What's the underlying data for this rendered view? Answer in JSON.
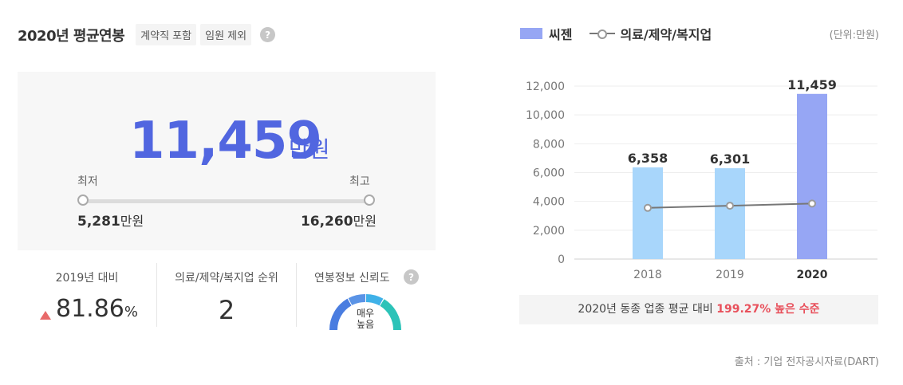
{
  "header": {
    "title": "2020년 평균연봉",
    "tag_contract": "계약직 포함",
    "tag_exec": "임원 제외",
    "help_glyph": "?"
  },
  "salary": {
    "value": "11,459",
    "unit": "만원",
    "min_label": "최저",
    "max_label": "최고",
    "min_value": "5,281",
    "max_value": "16,260",
    "value_unit": "만원"
  },
  "stats": {
    "yoy_label": "2019년 대비",
    "yoy_value": "81.86",
    "yoy_pct": "%",
    "rank_label": "의료/제약/복지업 순위",
    "rank_value": "2",
    "reliability_label": "연봉정보 신뢰도",
    "reliability_value_line1": "매우",
    "reliability_value_line2": "높음"
  },
  "legend": {
    "company": "씨젠",
    "industry": "의료/제약/복지업",
    "unit": "(단위:만원)"
  },
  "chart_data": {
    "type": "bar",
    "categories": [
      "2018",
      "2019",
      "2020"
    ],
    "series": [
      {
        "name": "씨젠",
        "values": [
          6358,
          6301,
          11459
        ]
      },
      {
        "name": "의료/제약/복지업",
        "values": [
          3550,
          3700,
          3850
        ]
      }
    ],
    "bar_labels": [
      "6,358",
      "6,301",
      "11,459"
    ],
    "y_ticks": [
      "0",
      "2,000",
      "4,000",
      "6,000",
      "8,000",
      "10,000",
      "12,000"
    ],
    "ylim": [
      0,
      12000
    ],
    "grid": true,
    "colors": {
      "past": "#a8d6fb",
      "current": "#96a6f4",
      "line": "#777777"
    }
  },
  "compare": {
    "prefix": "2020년 동종 업종 평균 대비",
    "highlight": "199.27% 높은 수준"
  },
  "source": "출처 : 기업 전자공시자료(DART)"
}
